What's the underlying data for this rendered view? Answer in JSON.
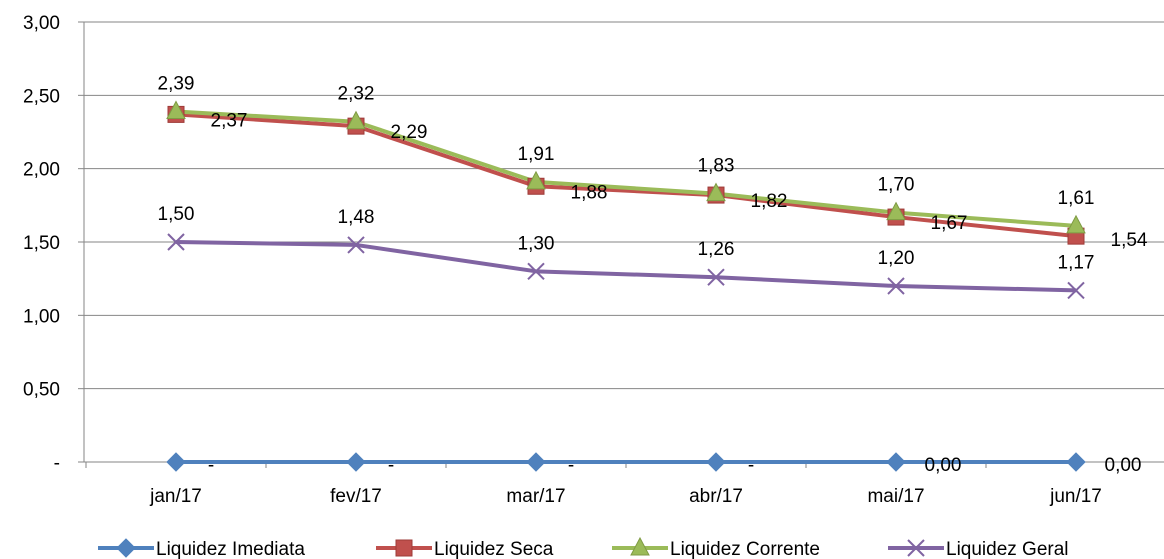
{
  "chart_data": {
    "type": "line",
    "title": "",
    "xlabel": "",
    "ylabel": "",
    "categories": [
      "jan/17",
      "fev/17",
      "mar/17",
      "abr/17",
      "mai/17",
      "jun/17"
    ],
    "ylim": [
      0,
      3
    ],
    "y_ticks": [
      {
        "value": 0,
        "label": "-"
      },
      {
        "value": 0.5,
        "label": "0,50"
      },
      {
        "value": 1.0,
        "label": "1,00"
      },
      {
        "value": 1.5,
        "label": "1,50"
      },
      {
        "value": 2.0,
        "label": "2,00"
      },
      {
        "value": 2.5,
        "label": "2,50"
      },
      {
        "value": 3.0,
        "label": "3,00"
      }
    ],
    "grid": "horizontal",
    "legend_position": "bottom",
    "series": [
      {
        "name": "Liquidez Imediata",
        "color": "#4F81BD",
        "marker": "diamond",
        "values": [
          0,
          0,
          0,
          0,
          0,
          0
        ],
        "labels": [
          "-",
          "-",
          "-",
          "-",
          "0,00",
          "0,00"
        ]
      },
      {
        "name": "Liquidez Seca",
        "color": "#C0504D",
        "marker": "square",
        "values": [
          2.37,
          2.29,
          1.88,
          1.82,
          1.67,
          1.54
        ],
        "labels": [
          "2,37",
          "2,29",
          "1,88",
          "1,82",
          "1,67",
          "1,54"
        ]
      },
      {
        "name": "Liquidez Corrente",
        "color": "#9BBB59",
        "marker": "triangle",
        "values": [
          2.39,
          2.32,
          1.91,
          1.83,
          1.7,
          1.61
        ],
        "labels": [
          "2,39",
          "2,32",
          "1,91",
          "1,83",
          "1,70",
          "1,61"
        ]
      },
      {
        "name": "Liquidez Geral",
        "color": "#8064A2",
        "marker": "x",
        "values": [
          1.5,
          1.48,
          1.3,
          1.26,
          1.2,
          1.17
        ],
        "labels": [
          "1,50",
          "1,48",
          "1,30",
          "1,26",
          "1,20",
          "1,17"
        ]
      }
    ]
  }
}
